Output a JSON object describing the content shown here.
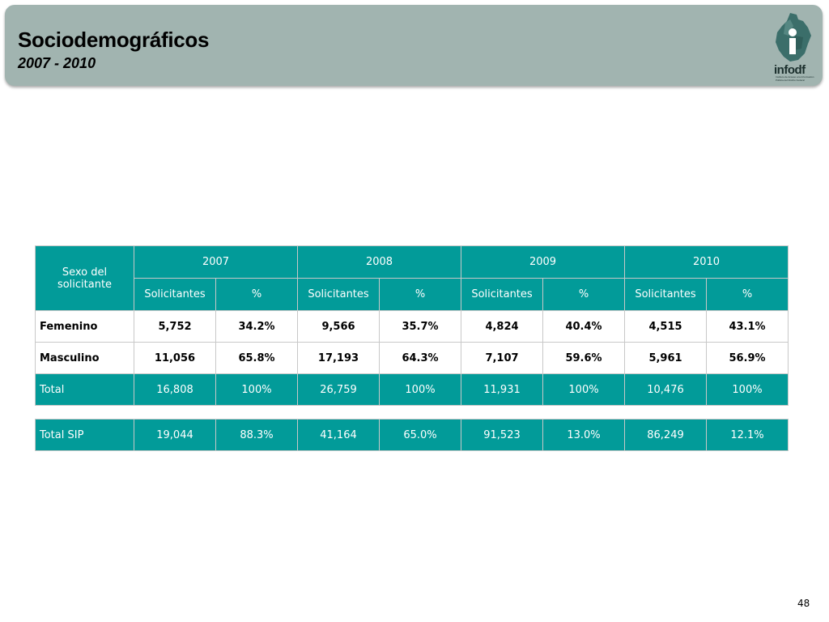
{
  "header": {
    "title": "Sociodemográficos",
    "subtitle": "2007 - 2010",
    "logo_text": "infodf",
    "logo_subtext": "Instituto de Acceso a la Información Pública del Distrito Federal"
  },
  "colors": {
    "teal": "#029b99",
    "header_bg": "#a1b4b0"
  },
  "table": {
    "row_header": "Sexo del solicitante",
    "years": [
      "2007",
      "2008",
      "2009",
      "2010"
    ],
    "sub_headers": [
      "Solicitantes",
      "%"
    ],
    "rows": [
      {
        "label": "Femenino",
        "values": [
          "5,752",
          "34.2%",
          "9,566",
          "35.7%",
          "4,824",
          "40.4%",
          "4,515",
          "43.1%"
        ]
      },
      {
        "label": "Masculino",
        "values": [
          "11,056",
          "65.8%",
          "17,193",
          "64.3%",
          "7,107",
          "59.6%",
          "5,961",
          "56.9%"
        ]
      },
      {
        "label": "Total",
        "values": [
          "16,808",
          "100%",
          "26,759",
          "100%",
          "11,931",
          "100%",
          "10,476",
          "100%"
        ]
      }
    ],
    "sip": {
      "label": "Total SIP",
      "values": [
        "19,044",
        "88.3%",
        "41,164",
        "65.0%",
        "91,523",
        "13.0%",
        "86,249",
        "12.1%"
      ]
    }
  },
  "page_number": "48"
}
